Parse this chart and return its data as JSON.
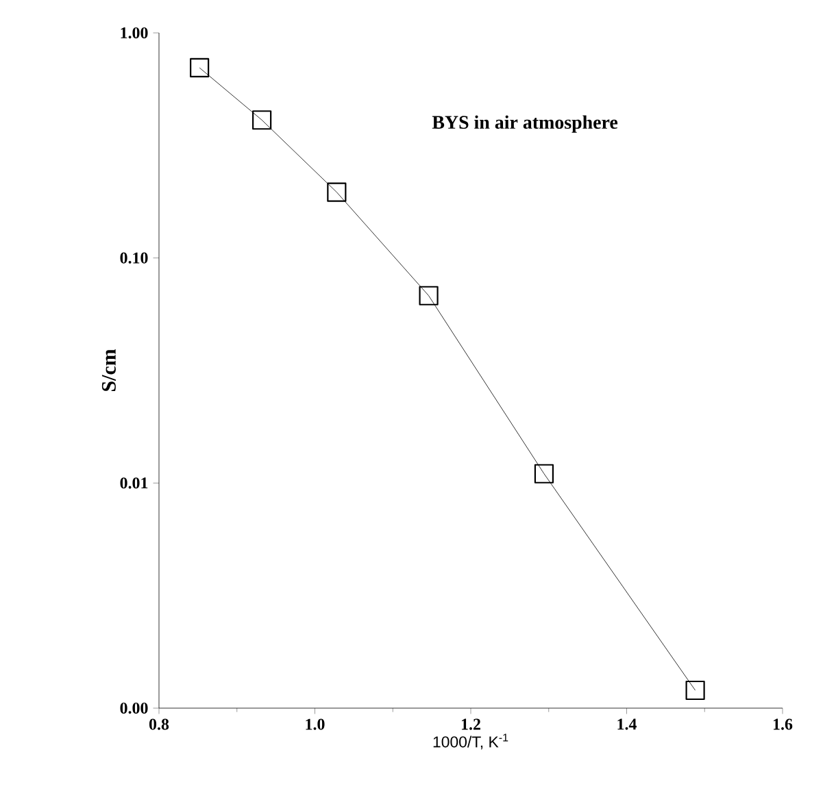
{
  "chart_data": {
    "type": "line",
    "x": [
      0.852,
      0.932,
      1.028,
      1.146,
      1.294,
      1.488
    ],
    "series": [
      {
        "color": "#000000",
        "values": [
          0.7,
          0.41,
          0.196,
          0.068,
          0.011,
          0.0012
        ]
      }
    ],
    "xlabel": "1000/T, K$^{-1}$",
    "ylabel": "S/cm",
    "annotations": [
      "BYS in air atmosphere"
    ],
    "xlim": [
      0.8,
      1.6
    ],
    "ylim": [
      0.001,
      1
    ],
    "xticks": [
      {
        "value": 0.8,
        "label": "0.8"
      },
      {
        "value": 1.0,
        "label": "1.0"
      },
      {
        "value": 1.2,
        "label": "1.2"
      },
      {
        "value": 1.4,
        "label": "1.4"
      },
      {
        "value": 1.6,
        "label": "1.6"
      }
    ],
    "yticks": [
      {
        "value": 0.001,
        "label": "0.00"
      },
      {
        "value": 0.01,
        "label": "0.01"
      },
      {
        "value": 0.1,
        "label": "0.10"
      },
      {
        "value": 1,
        "label": "1.00"
      }
    ],
    "log": "y",
    "marker": "square",
    "line_style": "solid",
    "grid": false
  }
}
